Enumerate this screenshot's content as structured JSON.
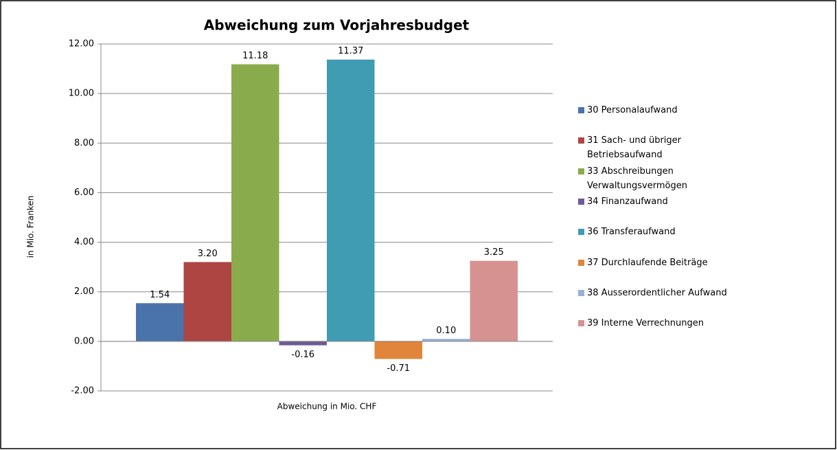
{
  "chart_data": {
    "type": "bar",
    "title": "Abweichung zum Vorjahresbudget",
    "y_label": "in Mio. Franken",
    "categories": [
      "Abweichung in Mio. CHF"
    ],
    "series": [
      {
        "name": "30 Personalaufwand",
        "color": "#4a72ab",
        "values": [
          1.54
        ],
        "value_labels": [
          "1.54"
        ]
      },
      {
        "name": "31 Sach- und übriger Betriebsaufwand",
        "color": "#ae4543",
        "values": [
          3.2
        ],
        "value_labels": [
          "3.20"
        ]
      },
      {
        "name": "33 Abschreibungen Verwaltungsvermögen",
        "color": "#8aab4c",
        "values": [
          11.18
        ],
        "value_labels": [
          "11.18"
        ]
      },
      {
        "name": "34 Finanzaufwand",
        "color": "#705a93",
        "values": [
          -0.16
        ],
        "value_labels": [
          "-0.16"
        ]
      },
      {
        "name": "36 Transferaufwand",
        "color": "#409cb3",
        "values": [
          11.37
        ],
        "value_labels": [
          "11.37"
        ]
      },
      {
        "name": "37 Durchlaufende Beiträge",
        "color": "#e0853a",
        "values": [
          -0.71
        ],
        "value_labels": [
          "-0.71"
        ]
      },
      {
        "name": "38 Ausserordentlicher Aufwand",
        "color": "#98afd6",
        "values": [
          0.1
        ],
        "value_labels": [
          "0.10"
        ]
      },
      {
        "name": "39 Interne Verrechnungen",
        "color": "#d59291",
        "values": [
          3.25
        ],
        "value_labels": [
          "3.25"
        ]
      }
    ],
    "ylim": [
      -2,
      12
    ],
    "yticks": [
      {
        "value": -2,
        "label": "-2.00"
      },
      {
        "value": 0,
        "label": "0.00"
      },
      {
        "value": 2,
        "label": "2.00"
      },
      {
        "value": 4,
        "label": "4.00"
      },
      {
        "value": 6,
        "label": "6.00"
      },
      {
        "value": 8,
        "label": "8.00"
      },
      {
        "value": 10,
        "label": "10.00"
      },
      {
        "value": 12,
        "label": "12.00"
      }
    ],
    "grid": true,
    "legend": "right"
  }
}
